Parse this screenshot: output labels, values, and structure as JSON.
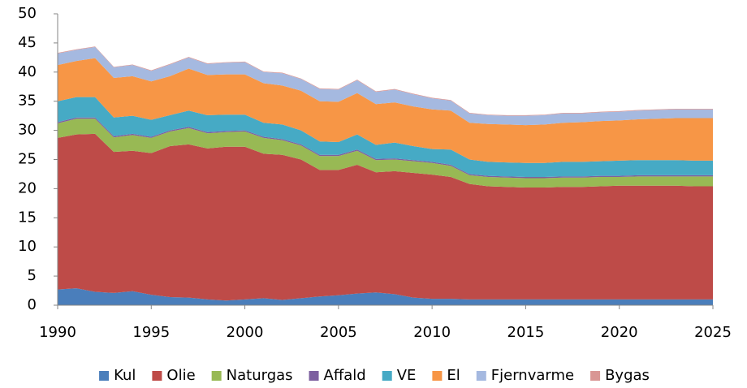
{
  "chart_data": {
    "type": "stacked-area",
    "x": [
      1990,
      1991,
      1992,
      1993,
      1994,
      1995,
      1996,
      1997,
      1998,
      1999,
      2000,
      2001,
      2002,
      2003,
      2004,
      2005,
      2006,
      2007,
      2008,
      2009,
      2010,
      2011,
      2012,
      2013,
      2014,
      2015,
      2016,
      2017,
      2018,
      2019,
      2020,
      2021,
      2022,
      2023,
      2024,
      2025
    ],
    "xlim": [
      1990,
      2025
    ],
    "xticks": [
      1990,
      1995,
      2000,
      2005,
      2010,
      2015,
      2020,
      2025
    ],
    "ylim": [
      0,
      50
    ],
    "yticks": [
      0,
      5,
      10,
      15,
      20,
      25,
      30,
      35,
      40,
      45,
      50
    ],
    "grid": false,
    "legend": "bottom",
    "series": [
      {
        "name": "Kul",
        "color": "#4a7ebb",
        "values": [
          2.7,
          2.9,
          2.3,
          2.1,
          2.4,
          1.8,
          1.4,
          1.3,
          1.0,
          0.8,
          1.0,
          1.2,
          0.9,
          1.2,
          1.5,
          1.7,
          2.0,
          2.2,
          1.9,
          1.3,
          1.1,
          1.1,
          1.0,
          1.0,
          1.0,
          1.0,
          1.0,
          1.0,
          1.0,
          1.0,
          1.0,
          1.0,
          1.0,
          1.0,
          1.0,
          1.0
        ]
      },
      {
        "name": "Olie",
        "color": "#be4b48",
        "values": [
          26.0,
          26.4,
          27.1,
          24.2,
          24.1,
          24.3,
          25.9,
          26.3,
          25.9,
          26.4,
          26.2,
          24.8,
          24.9,
          23.8,
          21.7,
          21.5,
          22.1,
          20.6,
          21.1,
          21.4,
          21.3,
          20.9,
          19.8,
          19.4,
          19.3,
          19.2,
          19.2,
          19.3,
          19.3,
          19.4,
          19.5,
          19.5,
          19.5,
          19.5,
          19.4,
          19.4
        ]
      },
      {
        "name": "Naturgas",
        "color": "#98b954",
        "values": [
          2.5,
          2.7,
          2.6,
          2.5,
          2.7,
          2.6,
          2.5,
          2.8,
          2.6,
          2.5,
          2.6,
          2.7,
          2.5,
          2.4,
          2.4,
          2.4,
          2.4,
          2.1,
          2.0,
          2.0,
          2.0,
          1.9,
          1.5,
          1.6,
          1.6,
          1.6,
          1.6,
          1.6,
          1.6,
          1.6,
          1.5,
          1.6,
          1.6,
          1.6,
          1.7,
          1.7
        ]
      },
      {
        "name": "Affald",
        "color": "#7d60a0",
        "values": [
          0.2,
          0.2,
          0.2,
          0.2,
          0.2,
          0.2,
          0.2,
          0.2,
          0.2,
          0.2,
          0.2,
          0.2,
          0.2,
          0.2,
          0.2,
          0.2,
          0.2,
          0.2,
          0.2,
          0.2,
          0.2,
          0.2,
          0.2,
          0.2,
          0.2,
          0.2,
          0.2,
          0.2,
          0.2,
          0.2,
          0.2,
          0.2,
          0.2,
          0.2,
          0.2,
          0.2
        ]
      },
      {
        "name": "VE",
        "color": "#46aac5",
        "values": [
          3.6,
          3.5,
          3.5,
          3.2,
          3.1,
          2.9,
          2.6,
          2.8,
          2.9,
          2.8,
          2.7,
          2.4,
          2.5,
          2.4,
          2.3,
          2.2,
          2.6,
          2.4,
          2.7,
          2.4,
          2.2,
          2.6,
          2.5,
          2.4,
          2.4,
          2.4,
          2.4,
          2.5,
          2.5,
          2.5,
          2.6,
          2.6,
          2.6,
          2.6,
          2.5,
          2.5
        ]
      },
      {
        "name": "El",
        "color": "#f79646",
        "values": [
          6.2,
          6.2,
          6.7,
          6.8,
          6.8,
          6.6,
          6.7,
          7.2,
          6.9,
          6.9,
          6.9,
          6.8,
          6.7,
          6.8,
          6.9,
          6.9,
          7.1,
          7.0,
          6.9,
          6.8,
          6.8,
          6.7,
          6.3,
          6.5,
          6.5,
          6.5,
          6.6,
          6.7,
          6.8,
          6.9,
          6.9,
          7.0,
          7.1,
          7.2,
          7.3,
          7.3
        ]
      },
      {
        "name": "Fjernvarme",
        "color": "#a5b9e0",
        "values": [
          2.0,
          1.9,
          1.9,
          1.8,
          1.9,
          1.8,
          2.0,
          1.9,
          1.9,
          2.0,
          2.1,
          1.9,
          2.1,
          2.0,
          2.1,
          2.1,
          2.2,
          2.1,
          2.2,
          2.1,
          1.9,
          1.7,
          1.6,
          1.5,
          1.5,
          1.6,
          1.6,
          1.6,
          1.5,
          1.5,
          1.5,
          1.5,
          1.5,
          1.5,
          1.5,
          1.5
        ]
      },
      {
        "name": "Bygas",
        "color": "#d99694",
        "values": [
          0.1,
          0.1,
          0.1,
          0.1,
          0.1,
          0.1,
          0.1,
          0.1,
          0.1,
          0.1,
          0.1,
          0.1,
          0.1,
          0.1,
          0.1,
          0.1,
          0.1,
          0.1,
          0.1,
          0.1,
          0.1,
          0.1,
          0.1,
          0.1,
          0.1,
          0.1,
          0.1,
          0.1,
          0.1,
          0.1,
          0.1,
          0.1,
          0.1,
          0.1,
          0.1,
          0.1
        ]
      }
    ]
  }
}
